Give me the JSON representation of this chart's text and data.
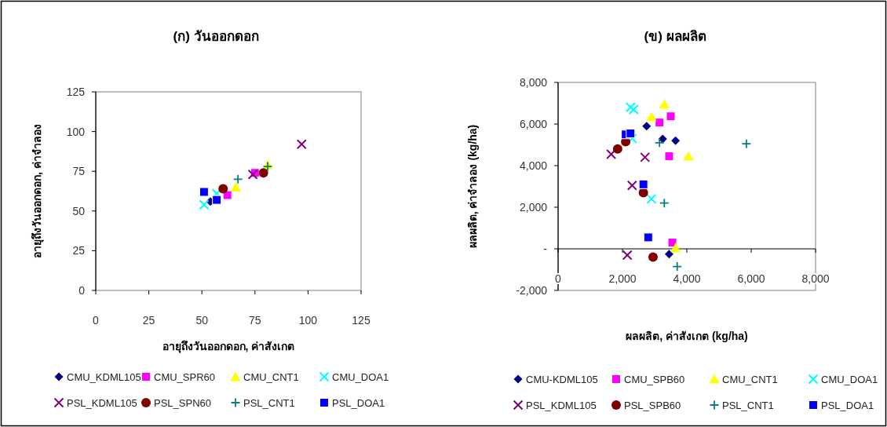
{
  "chart_data": [
    {
      "type": "scatter",
      "title": "(ก) วันออกดอก",
      "xlabel": "อายุถึงวันออกดอก, ค่าสังเกต",
      "ylabel": "อายุถึงวันออกดอก, ค่าจำลอง",
      "xlim": [
        0,
        125
      ],
      "ylim": [
        0,
        125
      ],
      "xticks": [
        0,
        25,
        50,
        75,
        100,
        125
      ],
      "yticks": [
        0,
        25,
        50,
        75,
        100,
        125
      ],
      "grid": false,
      "legend": "bottom",
      "series": [
        {
          "name": "CMU_KDML105",
          "color": "#000080",
          "marker": "diamond",
          "x": [
            54
          ],
          "values": [
            56
          ]
        },
        {
          "name": "CMU_SPR60",
          "color": "#ff00ff",
          "marker": "square",
          "x": [
            62,
            75
          ],
          "values": [
            60,
            74
          ]
        },
        {
          "name": "CMU_CNT1",
          "color": "#ffff00",
          "marker": "triangle",
          "x": [
            66,
            81
          ],
          "values": [
            65,
            79
          ]
        },
        {
          "name": "CMU_DOA1",
          "color": "#00ffff",
          "marker": "cross",
          "x": [
            51,
            57
          ],
          "values": [
            54,
            61
          ]
        },
        {
          "name": "PSL_KDML105",
          "color": "#800080",
          "marker": "cross",
          "x": [
            74,
            97
          ],
          "values": [
            73,
            92
          ]
        },
        {
          "name": "PSL_SPN60",
          "color": "#800000",
          "marker": "circle",
          "x": [
            60,
            79
          ],
          "values": [
            64,
            74
          ]
        },
        {
          "name": "PSL_CNT1",
          "color": "#008080",
          "marker": "plus",
          "x": [
            67,
            81
          ],
          "values": [
            70,
            78
          ]
        },
        {
          "name": "PSL_DOA1",
          "color": "#0000ff",
          "marker": "square",
          "x": [
            51,
            57
          ],
          "values": [
            62,
            57
          ]
        }
      ]
    },
    {
      "type": "scatter",
      "title": "(ข) ผลผลิต",
      "xlabel": "ผลผลิต, ค่าสังเกต (kg/ha)",
      "ylabel": "ผลผลิต, ค่าจำลอง (kg/ha)",
      "xlim": [
        0,
        8000
      ],
      "ylim": [
        -2000,
        8000
      ],
      "xticks": [
        0,
        {
          "value": 2000,
          "label": "2,000"
        },
        {
          "value": 4000,
          "label": "4,000"
        },
        {
          "value": 6000,
          "label": "6,000"
        },
        {
          "value": 8000,
          "label": "8,000"
        }
      ],
      "yticks": [
        {
          "value": -2000,
          "label": "-2,000"
        },
        {
          "value": 0,
          "label": "-"
        },
        {
          "value": 2000,
          "label": "2,000"
        },
        {
          "value": 4000,
          "label": "4,000"
        },
        {
          "value": 6000,
          "label": "6,000"
        },
        {
          "value": 8000,
          "label": "8,000"
        }
      ],
      "grid": false,
      "legend": "bottom",
      "ref_lines": [
        {
          "axis": "y",
          "value": 0,
          "color": "#000000"
        }
      ],
      "series": [
        {
          "name": "CMU-KDML105",
          "color": "#000080",
          "marker": "diamond",
          "x": [
            2750,
            3250,
            3650,
            3450
          ],
          "values": [
            5900,
            5280,
            5200,
            -250
          ]
        },
        {
          "name": "CMU_SPB60",
          "color": "#ff00ff",
          "marker": "square",
          "x": [
            3150,
            3500,
            3450,
            3550
          ],
          "values": [
            6070,
            6370,
            4450,
            300
          ]
        },
        {
          "name": "CMU_CNT1",
          "color": "#ffff00",
          "marker": "triangle",
          "x": [
            2900,
            3300,
            4050,
            3650
          ],
          "values": [
            6350,
            6950,
            4450,
            50
          ]
        },
        {
          "name": "CMU_DOA1",
          "color": "#00ffff",
          "marker": "cross",
          "x": [
            2250,
            2350,
            2300,
            2900
          ],
          "values": [
            6800,
            6700,
            5300,
            2400
          ]
        },
        {
          "name": "PSL_KDML105",
          "color": "#800080",
          "marker": "cross",
          "x": [
            1650,
            2700,
            2300,
            2150
          ],
          "values": [
            4550,
            4400,
            3050,
            -300
          ]
        },
        {
          "name": "PSL_SPB60",
          "color": "#800000",
          "marker": "circle",
          "x": [
            1850,
            2100,
            2650,
            2950
          ],
          "values": [
            4800,
            5150,
            2700,
            -400
          ]
        },
        {
          "name": "PSL_CNT1",
          "color": "#008080",
          "marker": "plus",
          "x": [
            3150,
            5850,
            3300,
            3700
          ],
          "values": [
            5100,
            5050,
            2200,
            -850
          ]
        },
        {
          "name": "PSL_DOA1",
          "color": "#0000ff",
          "marker": "square",
          "x": [
            2100,
            2250,
            2650,
            2800
          ],
          "values": [
            5500,
            5550,
            3100,
            550
          ]
        }
      ]
    }
  ]
}
